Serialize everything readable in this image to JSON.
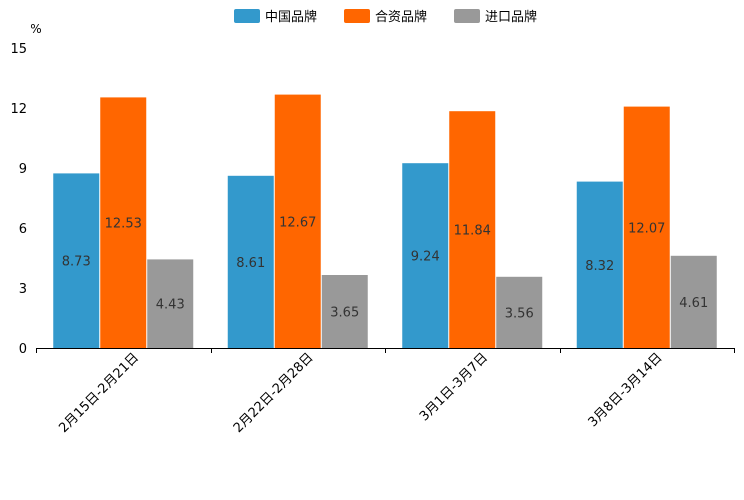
{
  "chart_data": {
    "type": "bar",
    "title": "",
    "xlabel": "",
    "ylabel": "",
    "y_unit": "%",
    "ylim": [
      0,
      15
    ],
    "yticks": [
      0,
      3,
      6,
      9,
      12,
      15
    ],
    "legend_position": "top-center",
    "categories": [
      "2月15日-2月21日",
      "2月22日-2月28日",
      "3月1日-3月7日",
      "3月8日-3月14日"
    ],
    "series": [
      {
        "name": "中国品牌",
        "color": "#3399cc",
        "values": [
          8.73,
          8.61,
          9.24,
          8.32
        ]
      },
      {
        "name": "合资品牌",
        "color": "#ff6600",
        "values": [
          12.53,
          12.67,
          11.84,
          12.07
        ]
      },
      {
        "name": "进口品牌",
        "color": "#999999",
        "values": [
          4.43,
          3.65,
          3.56,
          4.61
        ]
      }
    ],
    "data_labels": [
      [
        "8.73",
        "8.61",
        "9.24",
        "8.32"
      ],
      [
        "12.53",
        "12.67",
        "11.84",
        "12.07"
      ],
      [
        "4.43",
        "3.65",
        "3.56",
        "4.61"
      ]
    ],
    "label_color": "#333333",
    "axis_color": "#000000"
  }
}
